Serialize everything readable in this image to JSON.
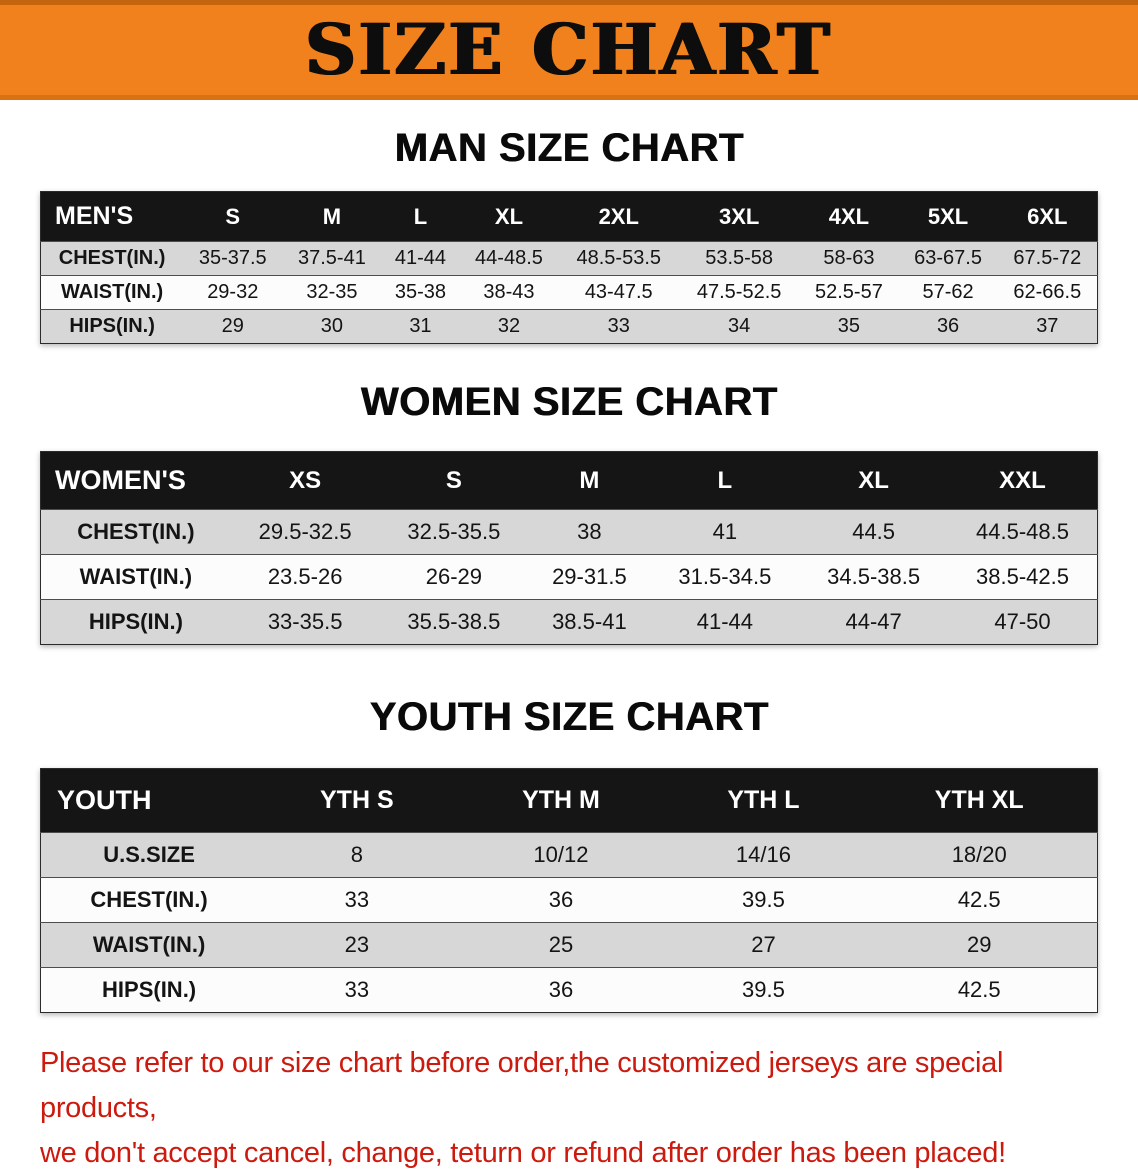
{
  "banner": {
    "title": "SIZE CHART",
    "bg_color": "#f0811c",
    "text_color": "#0d0d0d"
  },
  "sections": [
    {
      "heading": "MAN SIZE CHART",
      "table": {
        "header": [
          "MEN'S",
          "S",
          "M",
          "L",
          "XL",
          "2XL",
          "3XL",
          "4XL",
          "5XL",
          "6XL"
        ],
        "rows": [
          {
            "label": "CHEST(IN.)",
            "values": [
              "35-37.5",
              "37.5-41",
              "41-44",
              "44-48.5",
              "48.5-53.5",
              "53.5-58",
              "58-63",
              "63-67.5",
              "67.5-72"
            ]
          },
          {
            "label": "WAIST(IN.)",
            "values": [
              "29-32",
              "32-35",
              "35-38",
              "38-43",
              "43-47.5",
              "47.5-52.5",
              "52.5-57",
              "57-62",
              "62-66.5"
            ]
          },
          {
            "label": "HIPS(IN.)",
            "values": [
              "29",
              "30",
              "31",
              "32",
              "33",
              "34",
              "35",
              "36",
              "37"
            ]
          }
        ]
      }
    },
    {
      "heading": "WOMEN SIZE CHART",
      "table": {
        "header": [
          "WOMEN'S",
          "XS",
          "S",
          "M",
          "L",
          "XL",
          "XXL"
        ],
        "rows": [
          {
            "label": "CHEST(IN.)",
            "values": [
              "29.5-32.5",
              "32.5-35.5",
              "38",
              "41",
              "44.5",
              "44.5-48.5"
            ]
          },
          {
            "label": "WAIST(IN.)",
            "values": [
              "23.5-26",
              "26-29",
              "29-31.5",
              "31.5-34.5",
              "34.5-38.5",
              "38.5-42.5"
            ]
          },
          {
            "label": "HIPS(IN.)",
            "values": [
              "33-35.5",
              "35.5-38.5",
              "38.5-41",
              "41-44",
              "44-47",
              "47-50"
            ]
          }
        ]
      }
    },
    {
      "heading": "YOUTH SIZE CHART",
      "table": {
        "header": [
          "YOUTH",
          "YTH S",
          "YTH M",
          "YTH L",
          "YTH XL"
        ],
        "rows": [
          {
            "label": "U.S.SIZE",
            "values": [
              "8",
              "10/12",
              "14/16",
              "18/20"
            ]
          },
          {
            "label": "CHEST(IN.)",
            "values": [
              "33",
              "36",
              "39.5",
              "42.5"
            ]
          },
          {
            "label": "WAIST(IN.)",
            "values": [
              "23",
              "25",
              "27",
              "29"
            ]
          },
          {
            "label": "HIPS(IN.)",
            "values": [
              "33",
              "36",
              "39.5",
              "42.5"
            ]
          }
        ]
      }
    }
  ],
  "footer": {
    "line1": "Please refer to our size chart before order,the customized jerseys are special products,",
    "line2": "we don't accept cancel, change, teturn or refund after order has been placed!",
    "text_color": "#cc1a0e"
  }
}
